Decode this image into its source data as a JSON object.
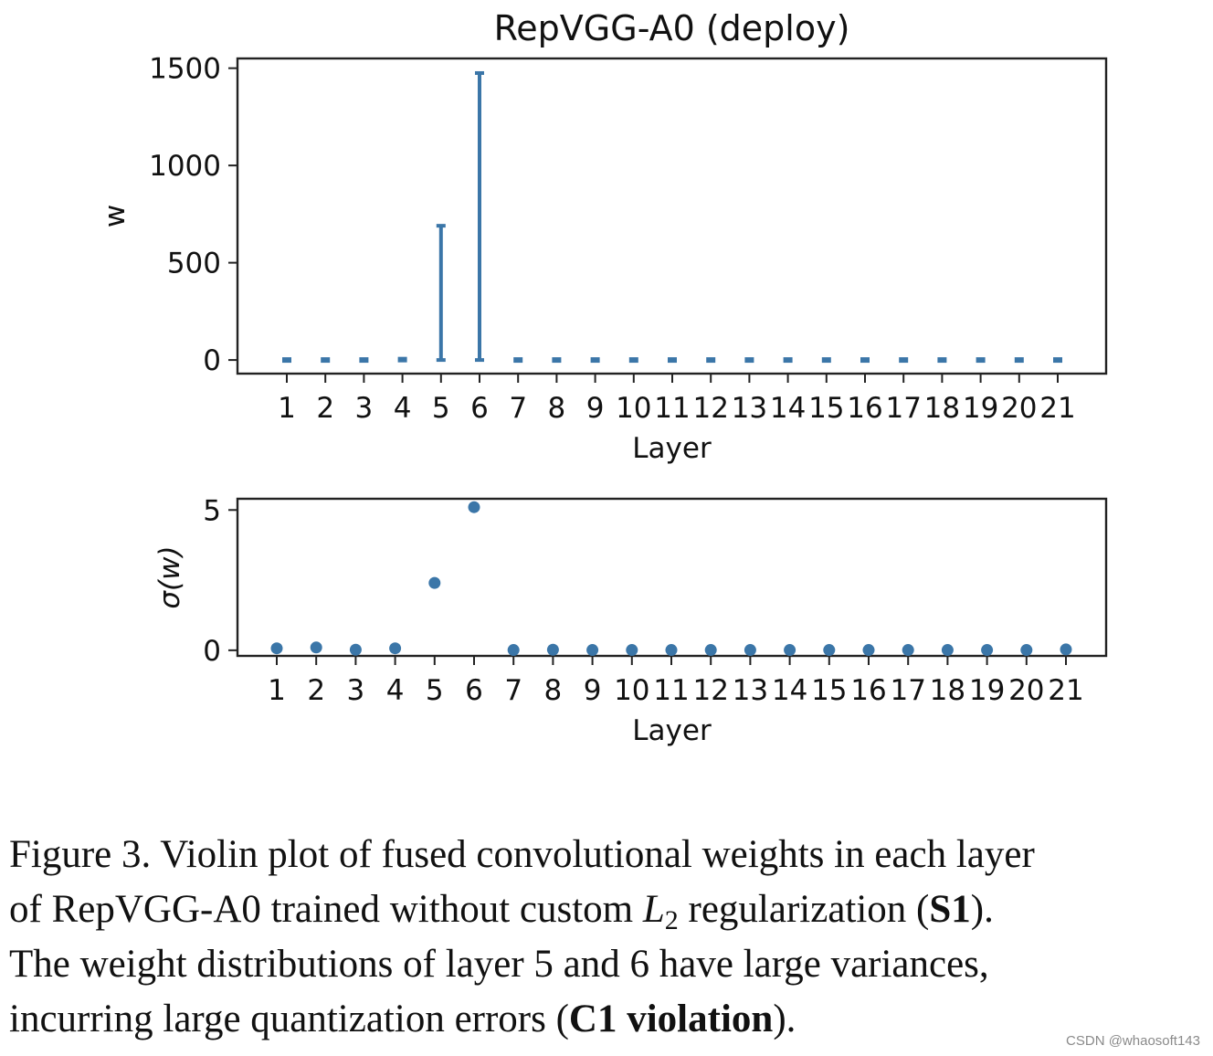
{
  "colors": {
    "series": "#3b76a8",
    "axes": "#222222"
  },
  "chart_data": [
    {
      "type": "violin",
      "title": "RepVGG-A0 (deploy)",
      "xlabel": "Layer",
      "ylabel": "w",
      "categories": [
        "1",
        "2",
        "3",
        "4",
        "5",
        "6",
        "7",
        "8",
        "9",
        "10",
        "11",
        "12",
        "13",
        "14",
        "15",
        "16",
        "17",
        "18",
        "19",
        "20",
        "21"
      ],
      "series": [
        {
          "ranges": [
            [
              -6,
              6
            ],
            [
              -6,
              6
            ],
            [
              -6,
              6
            ],
            [
              -8,
              12
            ],
            [
              0,
              690
            ],
            [
              0,
              1475
            ],
            [
              -6,
              6
            ],
            [
              -6,
              6
            ],
            [
              -6,
              6
            ],
            [
              -6,
              6
            ],
            [
              -6,
              6
            ],
            [
              -6,
              6
            ],
            [
              -6,
              6
            ],
            [
              -6,
              6
            ],
            [
              -6,
              6
            ],
            [
              -6,
              6
            ],
            [
              -6,
              6
            ],
            [
              -6,
              6
            ],
            [
              -6,
              6
            ],
            [
              -6,
              6
            ],
            [
              -6,
              6
            ]
          ]
        }
      ],
      "ylim": [
        -70,
        1550
      ],
      "yticks": [
        0,
        500,
        1000,
        1500
      ],
      "yticklabels": [
        "0",
        "500",
        "1000",
        "1500"
      ],
      "grid": false,
      "legend": "none"
    },
    {
      "type": "scatter",
      "title": "",
      "xlabel": "Layer",
      "ylabel": "σ(w)",
      "categories": [
        "1",
        "2",
        "3",
        "4",
        "5",
        "6",
        "7",
        "8",
        "9",
        "10",
        "11",
        "12",
        "13",
        "14",
        "15",
        "16",
        "17",
        "18",
        "19",
        "20",
        "21"
      ],
      "series": [
        {
          "values": [
            0.07,
            0.1,
            0.02,
            0.07,
            2.4,
            5.1,
            0.01,
            0.02,
            0.01,
            0.01,
            0.01,
            0.01,
            0.01,
            0.01,
            0.01,
            0.01,
            0.01,
            0.01,
            0.01,
            0.01,
            0.03
          ]
        }
      ],
      "ylim": [
        -0.2,
        5.4
      ],
      "yticks": [
        0,
        5
      ],
      "yticklabels": [
        "0",
        "5"
      ],
      "grid": false,
      "legend": "none"
    }
  ],
  "caption": {
    "line1": "Figure 3.  Violin plot of fused convolutional weights in each layer",
    "line2_a": "of RepVGG-A0 trained without custom ",
    "line2_L": "L",
    "line2_sub": "2",
    "line2_b": " regularization (",
    "line2_bold": "S1",
    "line2_c": ").",
    "line3": "The weight distributions of layer 5 and 6 have large variances,",
    "line4_a": "incurring large quantization errors (",
    "line4_bold": "C1 violation",
    "line4_c": ")."
  },
  "watermark": "CSDN @whaosoft143"
}
